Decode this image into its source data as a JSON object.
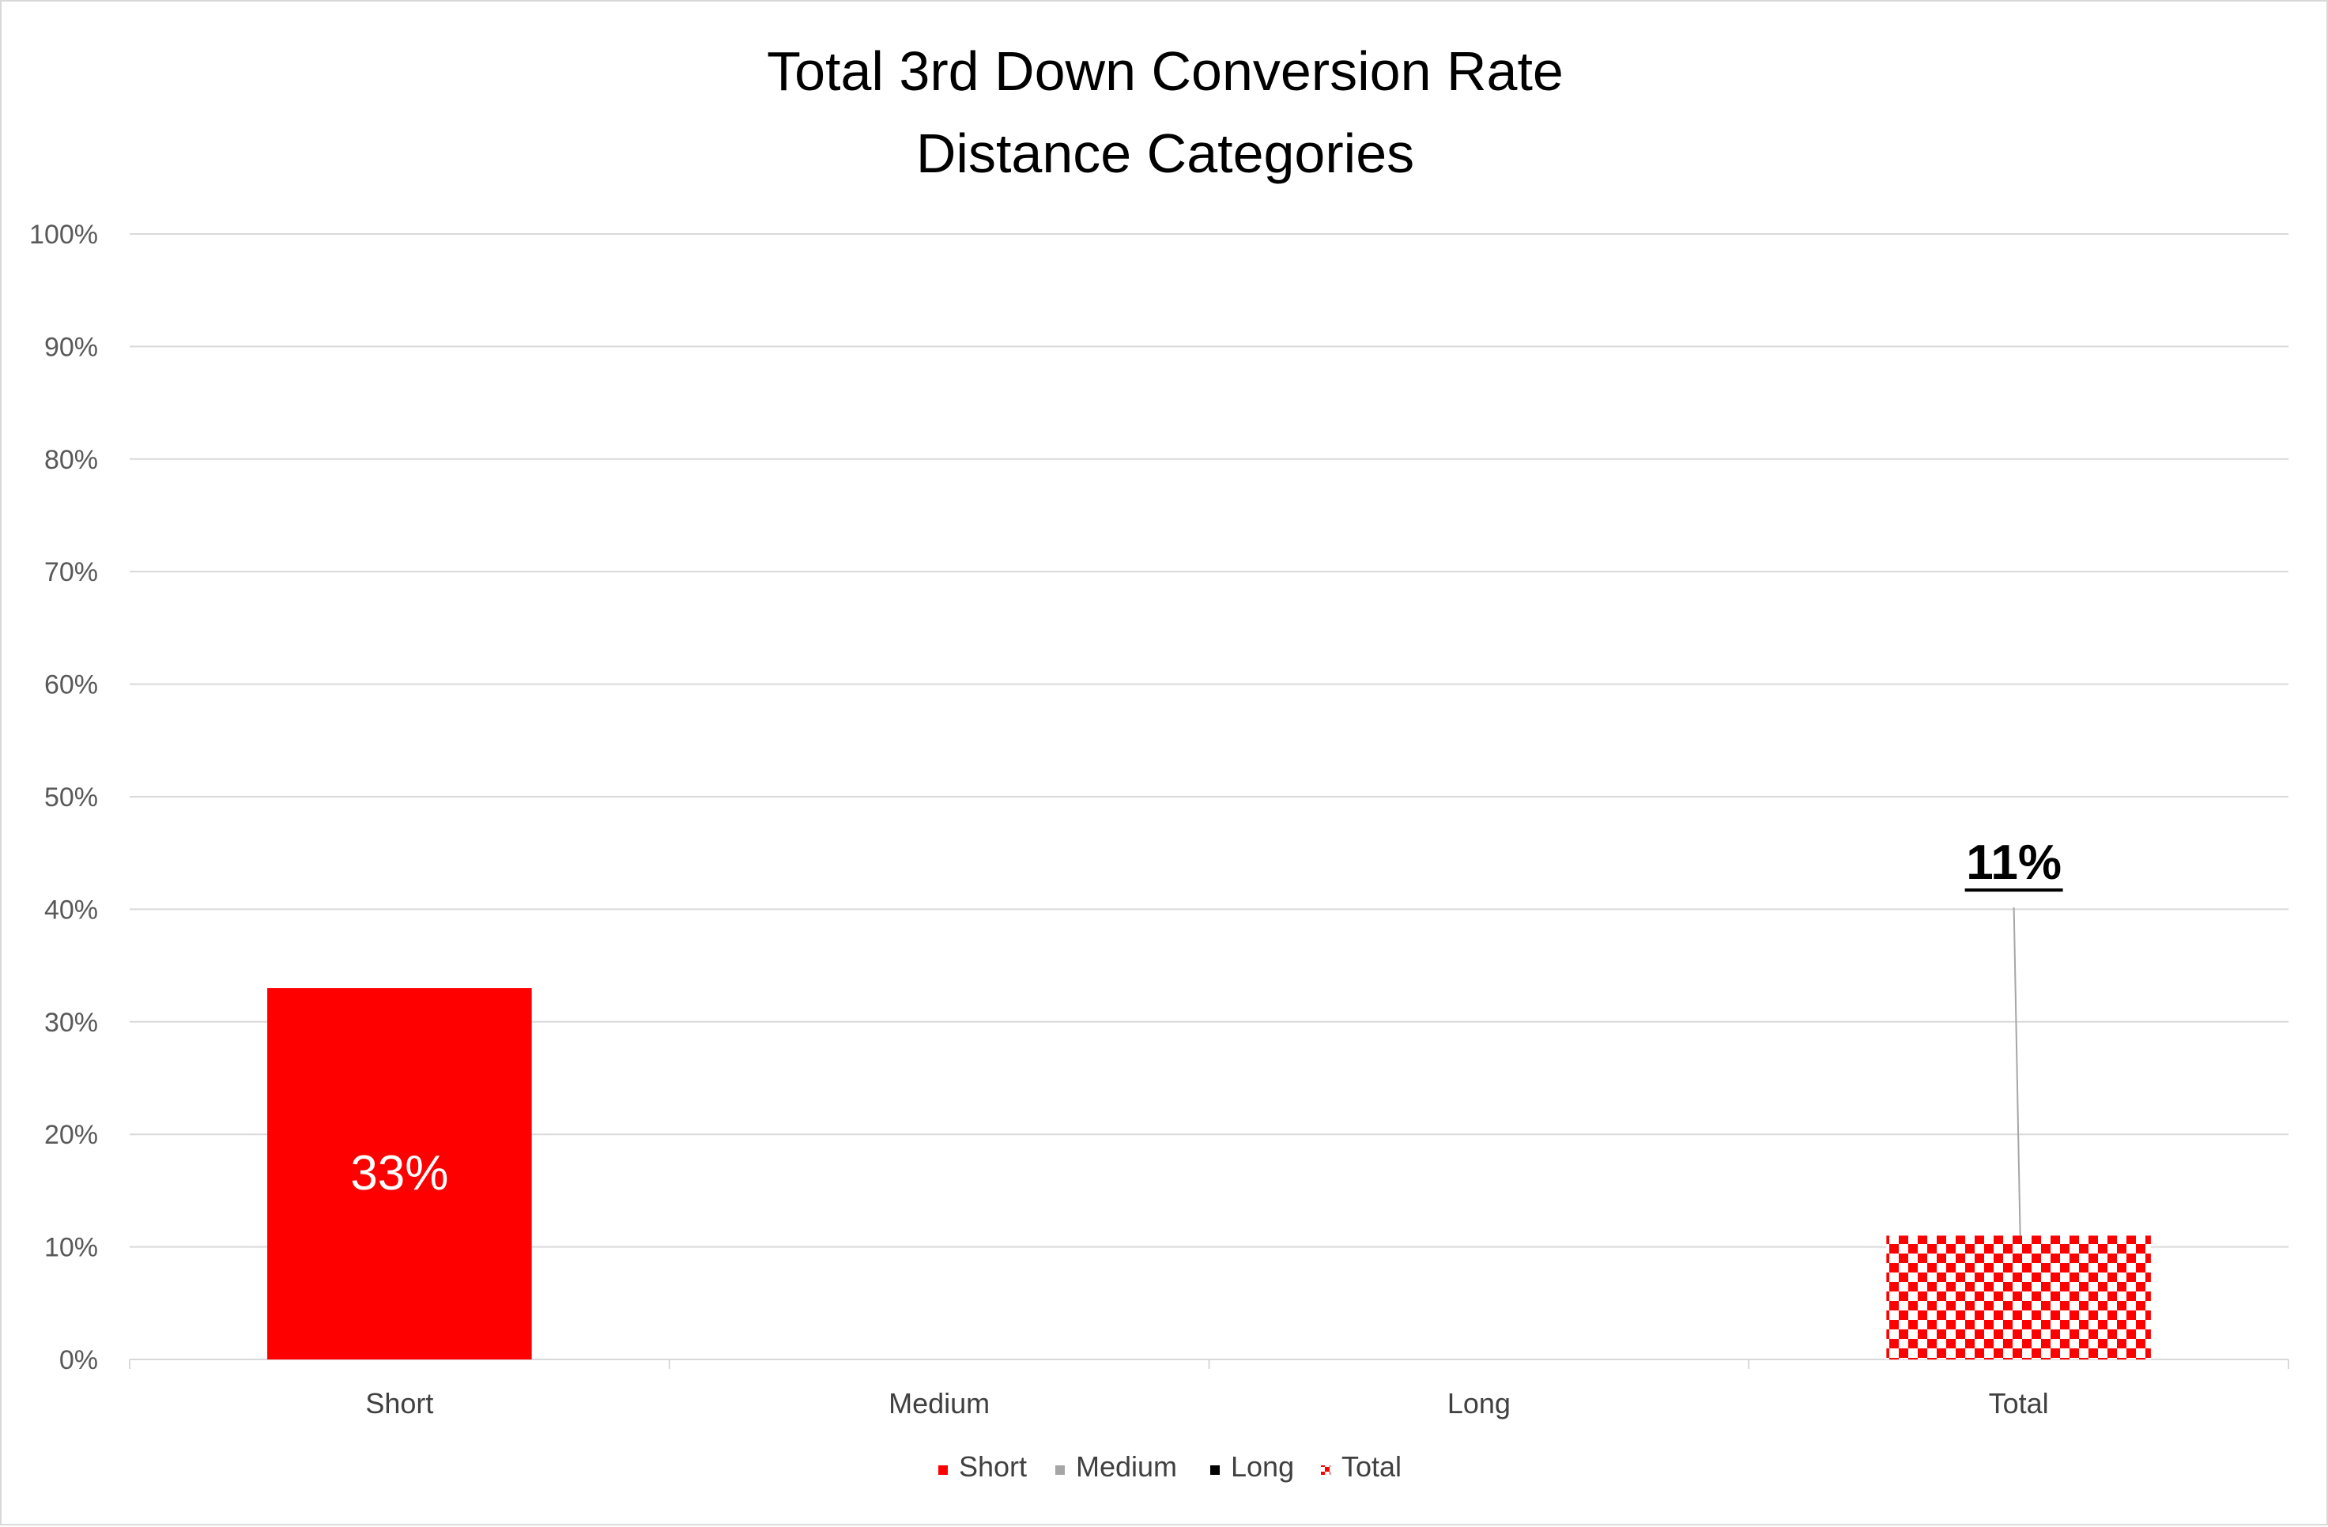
{
  "chart_data": {
    "type": "bar",
    "title": [
      "Total 3rd Down Conversion Rate",
      "Distance Categories"
    ],
    "categories": [
      "Short",
      "Medium",
      "Long",
      "Total"
    ],
    "values": [
      33,
      0,
      0,
      11
    ],
    "value_unit": "%",
    "data_labels": [
      "33%",
      "",
      "",
      "11%"
    ],
    "ylim": [
      0,
      100
    ],
    "yticks": [
      "0%",
      "10%",
      "20%",
      "30%",
      "40%",
      "50%",
      "60%",
      "70%",
      "80%",
      "90%",
      "100%"
    ],
    "xlabel": "",
    "ylabel": "",
    "grid": true,
    "legend": {
      "position": "bottom",
      "entries": [
        {
          "name": "Short",
          "color": "#ff0000",
          "pattern": "solid"
        },
        {
          "name": "Medium",
          "color": "#a6a6a6",
          "pattern": "solid"
        },
        {
          "name": "Long",
          "color": "#000000",
          "pattern": "solid"
        },
        {
          "name": "Total",
          "color": "#ff0000",
          "pattern": "checker"
        }
      ]
    },
    "colors": {
      "Short": "#ff0000",
      "Medium": "#a6a6a6",
      "Long": "#000000",
      "Total": "#ff0000"
    }
  }
}
